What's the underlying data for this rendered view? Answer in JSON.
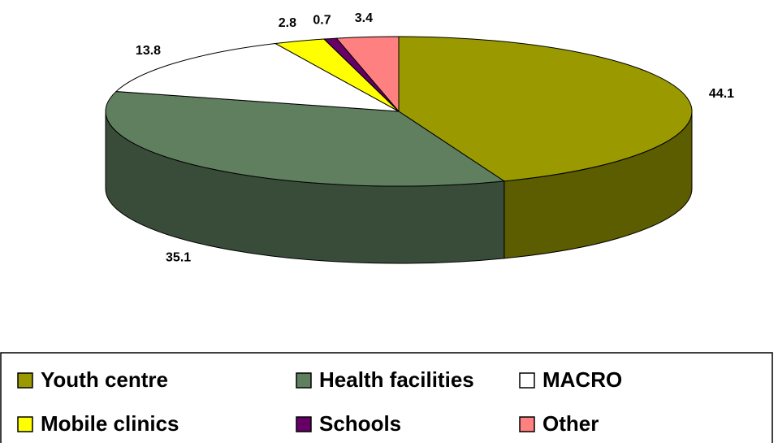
{
  "chart_data": {
    "type": "pie",
    "categories": [
      "Youth centre",
      "Health facilities",
      "MACRO",
      "Mobile clinics",
      "Schools",
      "Other"
    ],
    "values": [
      44.1,
      35.1,
      13.8,
      2.8,
      0.7,
      3.4
    ],
    "colors": [
      "#9a9a00",
      "#5f7f5f",
      "#ffffff",
      "#ffff00",
      "#660066",
      "#ff8080"
    ],
    "legend": "bottom"
  }
}
